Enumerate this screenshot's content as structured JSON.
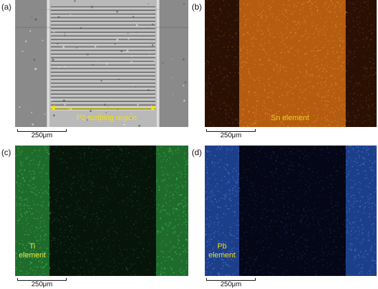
{
  "panels": [
    {
      "label": "(a)",
      "caption": "P2 scribing region",
      "caption_color": "#f2e10f",
      "scale_text": "250μm",
      "kind": "sem"
    },
    {
      "label": "(b)",
      "caption": "Sn element",
      "caption_color": "#f2d21a",
      "scale_text": "250μm",
      "kind": "map",
      "colors": {
        "dark": "#2a1003",
        "bright": "#b55c10",
        "speck": "#e08a2a"
      }
    },
    {
      "label": "(c)",
      "caption_line1": "Ti",
      "caption_line2": "element",
      "caption_color": "#eef042",
      "scale_text": "250μm",
      "kind": "map",
      "colors": {
        "dark": "#06140a",
        "bright": "#1f6b2c",
        "speck": "#38c050"
      }
    },
    {
      "label": "(d)",
      "caption_line1": "Pb",
      "caption_line2": "element",
      "caption_color": "#f2e10f",
      "scale_text": "250μm",
      "kind": "map",
      "colors": {
        "dark": "#050616",
        "bright": "#1d3f8a",
        "speck": "#3f7fe0"
      }
    }
  ]
}
